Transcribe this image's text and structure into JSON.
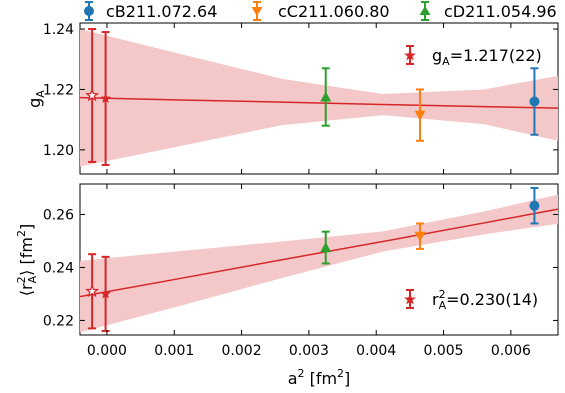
{
  "legend": [
    {
      "label": "cB211.072.64",
      "color": "#1f77b4",
      "marker": "circle"
    },
    {
      "label": "cC211.060.80",
      "color": "#ff7f0e",
      "marker": "triangle-down"
    },
    {
      "label": "cD211.054.96",
      "color": "#2ca02c",
      "marker": "triangle-up"
    }
  ],
  "chart_data": [
    {
      "type": "scatter",
      "panel": "top",
      "ylabel_main": "g",
      "ylabel_sub": "A",
      "xlim": [
        -0.0004,
        0.0067
      ],
      "ylim": [
        1.192,
        1.242
      ],
      "yticks": [
        "1.20",
        "1.22",
        "1.24"
      ],
      "ytick_values": [
        1.2,
        1.22,
        1.24
      ],
      "fit_color": "#d62728",
      "band_color": "#f4c7c8",
      "fit": {
        "x": [
          -0.0004,
          0.0011,
          0.0026,
          0.0041,
          0.0056,
          0.0067
        ],
        "center": [
          1.2173,
          1.2165,
          1.2158,
          1.215,
          1.2143,
          1.2138
        ],
        "lower": [
          1.1945,
          1.2013,
          1.2082,
          1.2115,
          1.2085,
          1.203
        ],
        "upper": [
          1.24,
          1.2317,
          1.2235,
          1.2185,
          1.22,
          1.2245
        ]
      },
      "points": [
        {
          "x": 0.00635,
          "y": 1.216,
          "err": 0.011,
          "color": "#1f77b4",
          "marker": "circle"
        },
        {
          "x": 0.00465,
          "y": 1.2115,
          "err": 0.0085,
          "color": "#ff7f0e",
          "marker": "triangle-down"
        },
        {
          "x": 0.00325,
          "y": 1.2175,
          "err": 0.0095,
          "color": "#2ca02c",
          "marker": "triangle-up"
        },
        {
          "x": -2e-05,
          "y": 1.217,
          "err": 0.022,
          "color": "#d62728",
          "marker": "star-filled"
        },
        {
          "x": -0.00022,
          "y": 1.218,
          "err": 0.022,
          "color": "#d62728",
          "marker": "star-open"
        }
      ],
      "annotation_main": "g",
      "annotation_sub": "A",
      "annotation_value": "=1.217(22)"
    },
    {
      "type": "scatter",
      "panel": "bottom",
      "ylabel_main": "⟨r",
      "ylabel_sup": "2",
      "ylabel_sub": "A",
      "ylabel_end": "⟩ [fm",
      "ylabel_unit_sup": "2",
      "ylabel_close": "]",
      "xlim": [
        -0.0004,
        0.0067
      ],
      "ylim": [
        0.2145,
        0.2715
      ],
      "yticks": [
        "0.22",
        "0.24",
        "0.26"
      ],
      "ytick_values": [
        0.22,
        0.24,
        0.26
      ],
      "xticks": [
        "0.000",
        "0.001",
        "0.002",
        "0.003",
        "0.004",
        "0.005",
        "0.006"
      ],
      "xtick_values": [
        0.0,
        0.001,
        0.002,
        0.003,
        0.004,
        0.005,
        0.006
      ],
      "xlabel_main": "a",
      "xlabel_sup": "2",
      "xlabel_end": " [fm",
      "xlabel_unit_sup": "2",
      "xlabel_close": "]",
      "fit_color": "#d62728",
      "band_color": "#f4c7c8",
      "fit": {
        "x": [
          -0.0004,
          0.0011,
          0.0026,
          0.0041,
          0.0056,
          0.0067
        ],
        "center": [
          0.229,
          0.2359,
          0.2429,
          0.2498,
          0.2568,
          0.262
        ],
        "lower": [
          0.2155,
          0.2256,
          0.236,
          0.246,
          0.2525,
          0.2565
        ],
        "upper": [
          0.2425,
          0.2462,
          0.2498,
          0.2536,
          0.2611,
          0.2675
        ]
      },
      "points": [
        {
          "x": 0.00635,
          "y": 0.2633,
          "err": 0.0067,
          "color": "#1f77b4",
          "marker": "circle"
        },
        {
          "x": 0.00465,
          "y": 0.2518,
          "err": 0.0048,
          "color": "#ff7f0e",
          "marker": "triangle-down"
        },
        {
          "x": 0.00325,
          "y": 0.2475,
          "err": 0.006,
          "color": "#2ca02c",
          "marker": "triangle-up"
        },
        {
          "x": -2e-05,
          "y": 0.23,
          "err": 0.014,
          "color": "#d62728",
          "marker": "star-filled"
        },
        {
          "x": -0.00022,
          "y": 0.231,
          "err": 0.014,
          "color": "#d62728",
          "marker": "star-open"
        }
      ],
      "annotation_main": "r",
      "annotation_sup": "2",
      "annotation_sub": "A",
      "annotation_value": "=0.230(14)"
    }
  ]
}
